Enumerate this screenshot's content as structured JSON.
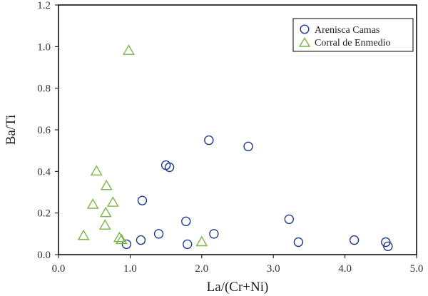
{
  "chart_data": {
    "type": "scatter",
    "title": "",
    "xlabel": "La/(Cr+Ni)",
    "ylabel": "Ba/Ti",
    "xlim": [
      0.0,
      5.0
    ],
    "ylim": [
      0.0,
      1.2
    ],
    "x_ticks": [
      "0.0",
      "1.0",
      "2.0",
      "3.0",
      "4.0",
      "5.0"
    ],
    "y_ticks": [
      "0.0",
      "0.2",
      "0.4",
      "0.6",
      "0.8",
      "1.0",
      "1.2"
    ],
    "grid": false,
    "legend_position": "top-right",
    "series": [
      {
        "name": "Arenisca Camas",
        "marker": "circle",
        "color": "#1f3b8c",
        "points": [
          {
            "x": 0.95,
            "y": 0.05
          },
          {
            "x": 1.15,
            "y": 0.07
          },
          {
            "x": 1.17,
            "y": 0.26
          },
          {
            "x": 1.4,
            "y": 0.1
          },
          {
            "x": 1.5,
            "y": 0.43
          },
          {
            "x": 1.55,
            "y": 0.42
          },
          {
            "x": 1.78,
            "y": 0.16
          },
          {
            "x": 1.8,
            "y": 0.05
          },
          {
            "x": 2.1,
            "y": 0.55
          },
          {
            "x": 2.17,
            "y": 0.1
          },
          {
            "x": 2.65,
            "y": 0.52
          },
          {
            "x": 3.22,
            "y": 0.17
          },
          {
            "x": 3.35,
            "y": 0.06
          },
          {
            "x": 4.13,
            "y": 0.07
          },
          {
            "x": 4.57,
            "y": 0.06
          },
          {
            "x": 4.6,
            "y": 0.04
          }
        ]
      },
      {
        "name": "Corral de Enmedio",
        "marker": "triangle",
        "color": "#7ab648",
        "points": [
          {
            "x": 0.35,
            "y": 0.09
          },
          {
            "x": 0.48,
            "y": 0.24
          },
          {
            "x": 0.53,
            "y": 0.4
          },
          {
            "x": 0.65,
            "y": 0.14
          },
          {
            "x": 0.66,
            "y": 0.2
          },
          {
            "x": 0.67,
            "y": 0.33
          },
          {
            "x": 0.76,
            "y": 0.25
          },
          {
            "x": 0.85,
            "y": 0.08
          },
          {
            "x": 0.88,
            "y": 0.07
          },
          {
            "x": 0.98,
            "y": 0.98
          },
          {
            "x": 2.0,
            "y": 0.06
          }
        ]
      }
    ]
  }
}
